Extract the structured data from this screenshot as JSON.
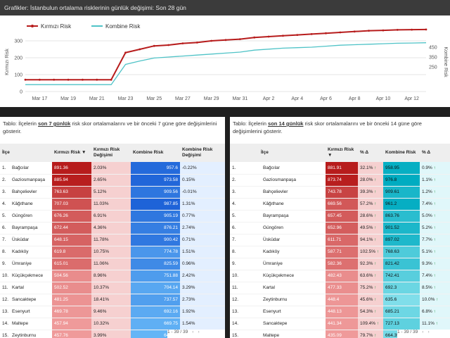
{
  "chart_header": "Grafikler: İstanbulun ortalama risklerinin günlük değişimi: Son 28 gün",
  "chart_data": {
    "type": "line",
    "x": [
      "Mar 16",
      "Mar 17",
      "Mar 18",
      "Mar 19",
      "Mar 20",
      "Mar 21",
      "Mar 22",
      "Mar 23",
      "Mar 24",
      "Mar 25",
      "Mar 26",
      "Mar 27",
      "Mar 28",
      "Mar 29",
      "Mar 30",
      "Mar 31",
      "Apr 1",
      "Apr 2",
      "Apr 3",
      "Apr 4",
      "Apr 5",
      "Apr 6",
      "Apr 7",
      "Apr 8",
      "Apr 9",
      "Apr 10",
      "Apr 11",
      "Apr 12",
      "Apr 13"
    ],
    "xticks": [
      "Mar 17",
      "Mar 19",
      "Mar 21",
      "Mar 23",
      "Mar 25",
      "Mar 27",
      "Mar 29",
      "Mar 31",
      "Apr 2",
      "Apr 4",
      "Apr 6",
      "Apr 8",
      "Apr 10",
      "Apr 12"
    ],
    "series": [
      {
        "name": "Kırmızı Risk",
        "color": "#b71c1c",
        "axis": "left",
        "values": [
          70,
          70,
          70,
          70,
          70,
          70,
          70,
          230,
          250,
          270,
          275,
          285,
          290,
          300,
          305,
          310,
          320,
          325,
          330,
          335,
          340,
          345,
          350,
          355,
          360,
          362,
          365,
          366,
          367
        ]
      },
      {
        "name": "Kombine Risk",
        "color": "#4fc3c7",
        "axis": "right",
        "values": [
          70,
          70,
          70,
          70,
          70,
          70,
          70,
          275,
          310,
          340,
          350,
          360,
          370,
          380,
          390,
          400,
          420,
          430,
          440,
          445,
          450,
          460,
          470,
          475,
          480,
          485,
          490,
          492,
          495
        ]
      }
    ],
    "ylabel_left": "Kırmızı Risk",
    "ylabel_right": "Kombine Risk",
    "yticks_left": [
      0,
      100,
      200,
      300
    ],
    "yticks_right": [
      250,
      350,
      450
    ],
    "ylim_left": [
      0,
      350
    ],
    "ylim_right": [
      0,
      600
    ],
    "yticks_right_values": [
      250,
      350,
      450
    ],
    "yticks_right_display": [
      "250",
      "350",
      "450"
    ],
    "yticks_right_labels_top": [
      "400"
    ],
    "legend": "top-left"
  },
  "left_table": {
    "caption_pre": "Tablo: İlçelerin ",
    "caption_bold": "son 7 günlük",
    "caption_post": " risk skor ortalamalarını ve bir önceki 7 güne göre değişimlerini gösterir.",
    "headers": [
      "İlçe",
      "Kırmızı Risk ▼",
      "Kırmızı Risk Değişimi",
      "Kombine Risk",
      "Kombine Risk Değişimi"
    ],
    "rows": [
      [
        "1.",
        "Bağcılar",
        "891.36",
        "2.03%",
        "957.6",
        "-0.22%"
      ],
      [
        "2.",
        "Gaziosmanpaşa",
        "885.94",
        "2.65%",
        "973.58",
        "0.15%"
      ],
      [
        "3.",
        "Bahçelievler",
        "763.63",
        "5.12%",
        "909.56",
        "-0.01%"
      ],
      [
        "4.",
        "Kâğıthane",
        "707.03",
        "11.03%",
        "987.85",
        "1.31%"
      ],
      [
        "5.",
        "Güngören",
        "676.26",
        "6.91%",
        "905.19",
        "0.77%"
      ],
      [
        "6.",
        "Bayrampaşa",
        "672.44",
        "4.36%",
        "876.21",
        "2.74%"
      ],
      [
        "7.",
        "Üsküdar",
        "648.15",
        "11.78%",
        "900.42",
        "0.71%"
      ],
      [
        "8.",
        "Kadıköy",
        "619.8",
        "10.75%",
        "774.78",
        "1.51%"
      ],
      [
        "9.",
        "Ümraniye",
        "615.01",
        "11.06%",
        "825.59",
        "0.96%"
      ],
      [
        "10.",
        "Küçükçekmece",
        "504.56",
        "8.96%",
        "751.88",
        "2.42%"
      ],
      [
        "11.",
        "Kartal",
        "502.52",
        "10.37%",
        "704.14",
        "3.29%"
      ],
      [
        "12.",
        "Sancaktepe",
        "481.25",
        "18.41%",
        "737.57",
        "2.73%"
      ],
      [
        "13.",
        "Esenyurt",
        "469.78",
        "9.46%",
        "692.16",
        "1.92%"
      ],
      [
        "14.",
        "Maltepe",
        "457.94",
        "10.32%",
        "669.75",
        "1.54%"
      ],
      [
        "15.",
        "Zeytinburnu",
        "457.76",
        "3.99%",
        "646.38",
        "3.23%"
      ]
    ],
    "pager": "1 - 39 / 39"
  },
  "right_table": {
    "caption_pre": "Tablo: İlçelerin ",
    "caption_bold": "son 14 günlük",
    "caption_post": " risk skor ortalamalarını ve bir önceki 14 güne göre değişimlerini gösterir.",
    "headers": [
      "İlçe",
      "Kırmızı Risk ▼",
      "% Δ",
      "Kombine Risk",
      "% Δ"
    ],
    "rows": [
      [
        "1.",
        "Bağcılar",
        "881.91",
        "32.1%",
        "958.95",
        "0.9%"
      ],
      [
        "2.",
        "Gaziosmanpaşa",
        "873.74",
        "28.0%",
        "976.8",
        "1.1%"
      ],
      [
        "3.",
        "Bahçelievler",
        "743.78",
        "39.3%",
        "909.61",
        "1.2%"
      ],
      [
        "4.",
        "Kâğıthane",
        "669.56",
        "57.2%",
        "961.2",
        "7.4%"
      ],
      [
        "5.",
        "Bayrampaşa",
        "657.45",
        "28.6%",
        "863.76",
        "5.0%"
      ],
      [
        "6.",
        "Güngören",
        "652.96",
        "49.5%",
        "901.52",
        "5.2%"
      ],
      [
        "7.",
        "Üsküdar",
        "611.71",
        "94.1%",
        "897.02",
        "7.7%"
      ],
      [
        "8.",
        "Kadıköy",
        "587.71",
        "102.5%",
        "768.63",
        "5.1%"
      ],
      [
        "9.",
        "Ümraniye",
        "582.36",
        "92.3%",
        "821.42",
        "9.3%"
      ],
      [
        "10.",
        "Küçükçekmece",
        "482.43",
        "63.6%",
        "742.41",
        "7.4%"
      ],
      [
        "11.",
        "Kartal",
        "477.33",
        "75.2%",
        "692.3",
        "8.5%"
      ],
      [
        "12.",
        "Zeytinburnu",
        "448.4",
        "45.6%",
        "635.6",
        "10.0%"
      ],
      [
        "13.",
        "Esenyurt",
        "448.13",
        "54.3%",
        "685.21",
        "6.8%"
      ],
      [
        "14.",
        "Sancaktepe",
        "441.34",
        "109.4%",
        "727.13",
        "11.1%"
      ],
      [
        "15.",
        "Maltepe",
        "435.09",
        "79.7%",
        "664.35",
        "10.2%"
      ]
    ],
    "pager": "1 - 39 / 39"
  },
  "colors": {
    "red_dark": "#b71c1c",
    "red_light": "#f6d0d0",
    "blue_dark": "#1e63d8",
    "blue_light": "#e3efff",
    "teal_dark": "#00acc1",
    "teal_light": "#e0f7fa"
  }
}
